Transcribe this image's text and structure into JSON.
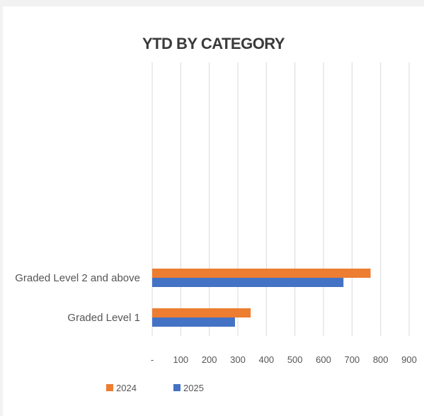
{
  "chart_data": {
    "type": "bar",
    "orientation": "horizontal",
    "title": "YTD BY CATEGORY",
    "categories": [
      "Graded Level 2 and above",
      "Graded Level 1"
    ],
    "series": [
      {
        "name": "2024",
        "color": "#ed7d31",
        "values": [
          765,
          345
        ]
      },
      {
        "name": "2025",
        "color": "#4472c4",
        "values": [
          670,
          290
        ]
      }
    ],
    "xlim": [
      0,
      900
    ],
    "xticks": [
      "-",
      "100",
      "200",
      "300",
      "400",
      "500",
      "600",
      "700",
      "800",
      "900"
    ],
    "grid": true,
    "legend": "bottom-left"
  }
}
